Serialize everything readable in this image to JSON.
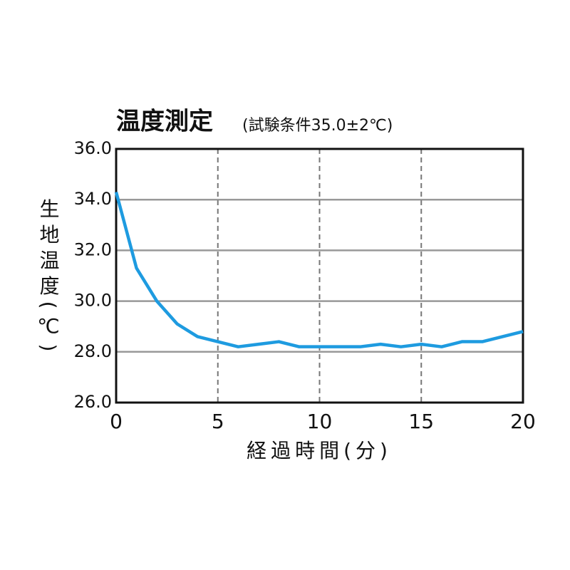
{
  "chart_data": {
    "type": "line",
    "title": "温度測定",
    "subtitle": "(試験条件35.0±2℃)",
    "x_label": "経過時間(分)",
    "y_label": "生地温度(℃)",
    "x": [
      0,
      1,
      2,
      3,
      4,
      5,
      6,
      7,
      8,
      9,
      10,
      11,
      12,
      13,
      14,
      15,
      16,
      17,
      18,
      19,
      20
    ],
    "series": [
      {
        "color": "#1e9be0",
        "values": [
          34.3,
          31.3,
          30.0,
          29.1,
          28.6,
          28.4,
          28.2,
          28.3,
          28.4,
          28.2,
          28.2,
          28.2,
          28.2,
          28.3,
          28.2,
          28.3,
          28.2,
          28.4,
          28.4,
          28.6,
          28.8
        ]
      }
    ],
    "xlim": [
      0,
      20
    ],
    "xticks": [
      0,
      5,
      10,
      15,
      20
    ],
    "ylim": [
      26,
      36
    ],
    "yticks": [
      {
        "value": 26,
        "label": "26.0"
      },
      {
        "value": 28,
        "label": "28.0"
      },
      {
        "value": 30,
        "label": "30.0"
      },
      {
        "value": 32,
        "label": "32.0"
      },
      {
        "value": 34,
        "label": "34.0"
      },
      {
        "value": 36,
        "label": "36.0"
      }
    ],
    "grid": true
  }
}
